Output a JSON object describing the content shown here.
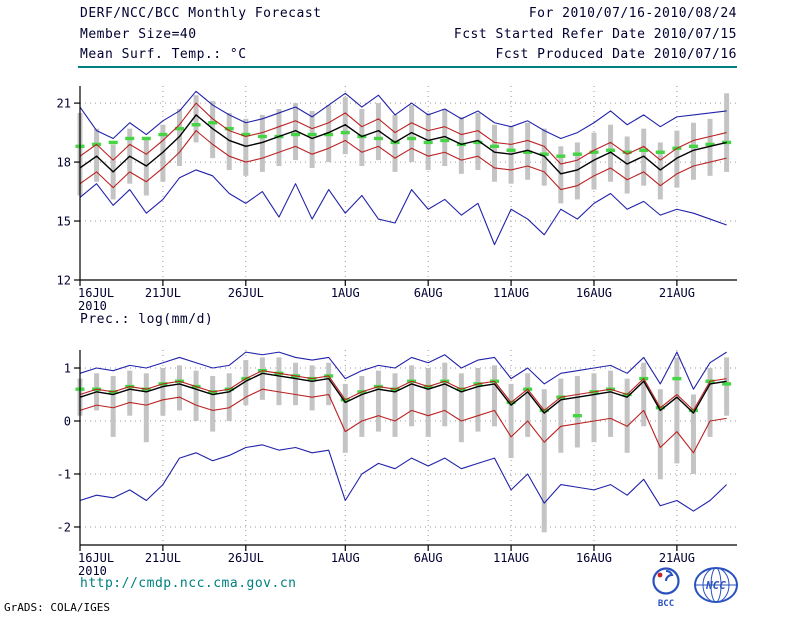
{
  "header": {
    "title": "DERF/NCC/BCC Monthly Forecast",
    "member_size": "Member Size=40",
    "for_range": "For 2010/07/16-2010/08/24",
    "fcst_started": "Fcst Started Refer Date 2010/07/15",
    "fcst_produced": "Fcst Produced Date 2010/07/16"
  },
  "footer": {
    "url": "http://cmdp.ncc.cma.gov.cn",
    "credit": "GrADS: COLA/IGES",
    "logos": [
      {
        "name": "bcc-logo",
        "label": "BCC"
      },
      {
        "name": "ncc-logo",
        "label": "NCC"
      }
    ]
  },
  "colors": {
    "accent_teal": "#008080",
    "line_blue": "#2222aa",
    "line_red": "#bb2222",
    "line_black": "#000000",
    "dash_green": "#44d444",
    "bar_gray": "#c4c4c4"
  },
  "chart_data": [
    {
      "type": "line",
      "title": "Mean Surf. Temp.: °C",
      "n_points": 40,
      "x_axis": {
        "year": "2010",
        "labels": [
          {
            "day": 0,
            "text": "16JUL"
          },
          {
            "day": 5,
            "text": "21JUL"
          },
          {
            "day": 10,
            "text": "26JUL"
          },
          {
            "day": 16,
            "text": "1AUG"
          },
          {
            "day": 21,
            "text": "6AUG"
          },
          {
            "day": 26,
            "text": "11AUG"
          },
          {
            "day": 31,
            "text": "16AUG"
          },
          {
            "day": 36,
            "text": "21AUG"
          }
        ]
      },
      "yticks": [
        12,
        15,
        18,
        21
      ],
      "ylim": [
        12,
        21.87
      ],
      "bars": {
        "name": "ensemble-spread",
        "color": "#c4c4c4",
        "low": [
          16.3,
          17.0,
          16.1,
          16.9,
          16.3,
          17.0,
          17.8,
          19.0,
          18.2,
          17.6,
          17.3,
          17.5,
          17.8,
          18.1,
          17.7,
          18.0,
          18.4,
          17.8,
          18.1,
          17.5,
          18.0,
          17.6,
          17.8,
          17.4,
          17.6,
          17.0,
          16.9,
          17.1,
          16.8,
          15.9,
          16.1,
          16.6,
          17.0,
          16.4,
          16.8,
          16.1,
          16.7,
          17.1,
          17.3,
          17.5
        ],
        "high": [
          20.5,
          19.7,
          18.9,
          19.7,
          19.2,
          19.9,
          20.7,
          21.4,
          21.1,
          20.5,
          20.2,
          20.4,
          20.7,
          21.0,
          20.6,
          20.9,
          21.3,
          20.7,
          21.0,
          20.4,
          20.9,
          20.5,
          20.7,
          20.3,
          20.5,
          19.9,
          19.8,
          20.0,
          19.7,
          18.8,
          19.0,
          19.5,
          19.9,
          19.3,
          19.7,
          19.0,
          19.6,
          20.0,
          20.2,
          21.5
        ]
      },
      "dashes": {
        "name": "observation-dashes",
        "color": "#44d444",
        "values": [
          18.8,
          18.9,
          19.0,
          19.2,
          19.2,
          19.4,
          19.7,
          19.9,
          20.0,
          19.7,
          19.4,
          19.3,
          19.3,
          19.4,
          19.4,
          19.4,
          19.5,
          19.3,
          19.2,
          19.0,
          19.2,
          19.0,
          19.1,
          18.9,
          19.0,
          18.8,
          18.6,
          18.5,
          18.4,
          18.3,
          18.4,
          18.5,
          18.6,
          18.5,
          18.6,
          18.5,
          18.7,
          18.8,
          18.9,
          19.0
        ]
      },
      "series": [
        {
          "name": "ensemble-max",
          "color": "#2222aa",
          "width": 1.1,
          "values": [
            20.8,
            19.6,
            19.2,
            20.0,
            19.4,
            20.1,
            20.6,
            21.6,
            20.9,
            20.4,
            20.0,
            20.2,
            20.5,
            20.8,
            20.3,
            20.9,
            21.5,
            20.8,
            21.4,
            20.4,
            21.0,
            20.4,
            20.7,
            20.2,
            20.6,
            20.0,
            19.8,
            20.1,
            19.6,
            19.2,
            19.5,
            20.0,
            20.6,
            19.9,
            20.4,
            19.8,
            20.3,
            20.4,
            20.5,
            20.6
          ]
        },
        {
          "name": "upper-quartile",
          "color": "#bb2222",
          "width": 1.1,
          "values": [
            18.3,
            18.9,
            18.1,
            18.9,
            18.4,
            19.1,
            19.9,
            21.0,
            20.2,
            19.6,
            19.3,
            19.5,
            19.8,
            20.1,
            19.7,
            20.0,
            20.5,
            19.8,
            20.2,
            19.5,
            20.0,
            19.6,
            19.8,
            19.4,
            19.6,
            19.0,
            18.9,
            19.1,
            18.8,
            17.9,
            18.1,
            18.6,
            19.0,
            18.4,
            18.8,
            18.1,
            18.7,
            19.1,
            19.3,
            19.5
          ]
        },
        {
          "name": "ensemble-mean",
          "color": "#000000",
          "width": 1.4,
          "values": [
            17.7,
            18.3,
            17.5,
            18.3,
            17.8,
            18.5,
            19.3,
            20.4,
            19.7,
            19.1,
            18.8,
            19.0,
            19.3,
            19.6,
            19.2,
            19.5,
            19.9,
            19.3,
            19.6,
            19.0,
            19.5,
            19.1,
            19.3,
            18.9,
            19.1,
            18.5,
            18.4,
            18.6,
            18.3,
            17.4,
            17.6,
            18.1,
            18.5,
            17.9,
            18.3,
            17.6,
            18.2,
            18.6,
            18.8,
            19.0
          ]
        },
        {
          "name": "lower-quartile",
          "color": "#bb2222",
          "width": 1.1,
          "values": [
            16.9,
            17.5,
            16.7,
            17.5,
            17.0,
            17.7,
            18.5,
            19.6,
            18.9,
            18.3,
            18.0,
            18.2,
            18.5,
            18.8,
            18.4,
            18.7,
            19.1,
            18.5,
            18.8,
            18.2,
            18.7,
            18.3,
            18.5,
            18.1,
            18.3,
            17.7,
            17.6,
            17.8,
            17.5,
            16.6,
            16.8,
            17.3,
            17.7,
            17.1,
            17.5,
            16.8,
            17.4,
            17.8,
            18.0,
            18.2
          ]
        },
        {
          "name": "ensemble-min",
          "color": "#2222aa",
          "width": 1.1,
          "values": [
            16.2,
            16.9,
            15.8,
            16.6,
            15.4,
            16.1,
            17.2,
            17.6,
            17.3,
            16.4,
            15.9,
            16.5,
            15.2,
            16.9,
            15.1,
            16.6,
            15.4,
            16.3,
            15.1,
            14.9,
            16.6,
            15.6,
            16.1,
            15.3,
            15.9,
            13.8,
            15.6,
            15.1,
            14.3,
            15.6,
            15.1,
            15.9,
            16.4,
            15.6,
            16.0,
            15.3,
            15.6,
            15.4,
            15.1,
            14.8
          ]
        }
      ]
    },
    {
      "type": "line",
      "title": "Prec.: log(mm/d)",
      "n_points": 40,
      "x_axis": {
        "year": "2010",
        "labels": [
          {
            "day": 0,
            "text": "16JUL"
          },
          {
            "day": 5,
            "text": "21JUL"
          },
          {
            "day": 10,
            "text": "26JUL"
          },
          {
            "day": 16,
            "text": "1AUG"
          },
          {
            "day": 21,
            "text": "6AUG"
          },
          {
            "day": 26,
            "text": "11AUG"
          },
          {
            "day": 31,
            "text": "16AUG"
          },
          {
            "day": 36,
            "text": "21AUG"
          }
        ]
      },
      "yticks": [
        -2,
        -1,
        0,
        1
      ],
      "ylim": [
        -2.34,
        1.34
      ],
      "bars": {
        "name": "ensemble-spread",
        "color": "#c4c4c4",
        "low": [
          0.1,
          0.2,
          -0.3,
          0.1,
          -0.4,
          0.1,
          0.2,
          0.0,
          -0.2,
          0.0,
          0.3,
          0.4,
          0.3,
          0.3,
          0.2,
          0.3,
          -0.6,
          -0.3,
          -0.2,
          -0.3,
          -0.1,
          -0.3,
          -0.1,
          -0.4,
          -0.2,
          -0.1,
          -0.7,
          -0.3,
          -2.1,
          -0.6,
          -0.5,
          -0.4,
          -0.3,
          -0.6,
          -0.1,
          -1.1,
          -0.8,
          -1.0,
          -0.3,
          0.1
        ],
        "high": [
          0.8,
          0.9,
          0.85,
          0.95,
          0.9,
          1.0,
          1.05,
          0.95,
          0.85,
          0.9,
          1.15,
          1.2,
          1.2,
          1.1,
          1.05,
          1.1,
          0.7,
          0.85,
          0.95,
          0.9,
          1.05,
          1.0,
          1.1,
          0.9,
          1.0,
          1.05,
          0.7,
          0.9,
          0.6,
          0.8,
          0.85,
          0.9,
          0.95,
          0.8,
          1.1,
          0.6,
          1.2,
          0.5,
          1.0,
          1.2
        ]
      },
      "dashes": {
        "name": "observation-dashes",
        "color": "#44d444",
        "values": [
          0.6,
          0.6,
          0.55,
          0.65,
          0.6,
          0.7,
          0.75,
          0.65,
          0.55,
          0.6,
          0.8,
          0.95,
          0.9,
          0.85,
          0.8,
          0.85,
          0.4,
          0.55,
          0.65,
          0.6,
          0.75,
          0.65,
          0.75,
          0.6,
          0.7,
          0.75,
          0.35,
          0.6,
          0.2,
          0.45,
          0.1,
          0.55,
          0.6,
          0.5,
          0.8,
          0.25,
          0.8,
          0.2,
          0.75,
          0.7
        ]
      },
      "series": [
        {
          "name": "ensemble-max",
          "color": "#2222aa",
          "width": 1.1,
          "values": [
            0.9,
            1.0,
            0.95,
            1.05,
            1.0,
            1.1,
            1.2,
            1.1,
            1.0,
            1.05,
            1.3,
            1.25,
            1.3,
            1.2,
            1.15,
            1.2,
            0.8,
            0.95,
            1.05,
            1.0,
            1.2,
            1.1,
            1.25,
            1.0,
            1.15,
            1.2,
            0.8,
            1.0,
            0.7,
            0.9,
            0.95,
            1.0,
            1.05,
            0.9,
            1.2,
            0.7,
            1.3,
            0.6,
            1.1,
            1.3
          ]
        },
        {
          "name": "upper-quartile",
          "color": "#bb2222",
          "width": 1.1,
          "values": [
            0.5,
            0.6,
            0.55,
            0.65,
            0.6,
            0.7,
            0.75,
            0.65,
            0.55,
            0.6,
            0.8,
            0.95,
            0.9,
            0.85,
            0.8,
            0.85,
            0.4,
            0.55,
            0.65,
            0.6,
            0.75,
            0.65,
            0.75,
            0.6,
            0.7,
            0.75,
            0.35,
            0.6,
            0.2,
            0.45,
            0.5,
            0.55,
            0.6,
            0.5,
            0.8,
            0.25,
            0.5,
            0.2,
            0.75,
            0.8
          ]
        },
        {
          "name": "ensemble-mean",
          "color": "#000000",
          "width": 1.4,
          "values": [
            0.45,
            0.55,
            0.5,
            0.6,
            0.55,
            0.65,
            0.7,
            0.6,
            0.5,
            0.55,
            0.75,
            0.9,
            0.85,
            0.8,
            0.75,
            0.8,
            0.35,
            0.5,
            0.6,
            0.55,
            0.7,
            0.6,
            0.7,
            0.55,
            0.65,
            0.7,
            0.3,
            0.55,
            0.15,
            0.4,
            0.45,
            0.5,
            0.55,
            0.45,
            0.75,
            0.2,
            0.45,
            0.15,
            0.7,
            0.75
          ]
        },
        {
          "name": "lower-quartile",
          "color": "#bb2222",
          "width": 1.1,
          "values": [
            0.2,
            0.3,
            0.25,
            0.35,
            0.3,
            0.4,
            0.45,
            0.3,
            0.2,
            0.25,
            0.45,
            0.6,
            0.55,
            0.5,
            0.45,
            0.5,
            -0.2,
            0.0,
            0.1,
            0.0,
            0.2,
            0.1,
            0.2,
            0.0,
            0.1,
            0.2,
            -0.3,
            0.0,
            -0.4,
            -0.1,
            -0.05,
            0.0,
            0.05,
            -0.1,
            0.2,
            -0.5,
            -0.2,
            -0.6,
            0.0,
            0.05
          ]
        },
        {
          "name": "ensemble-min",
          "color": "#2222aa",
          "width": 1.1,
          "values": [
            -1.5,
            -1.4,
            -1.45,
            -1.3,
            -1.5,
            -1.2,
            -0.7,
            -0.6,
            -0.75,
            -0.65,
            -0.5,
            -0.45,
            -0.55,
            -0.5,
            -0.6,
            -0.55,
            -1.5,
            -1.0,
            -0.8,
            -0.9,
            -0.7,
            -0.85,
            -0.7,
            -0.9,
            -0.8,
            -0.7,
            -1.3,
            -1.0,
            -1.55,
            -1.2,
            -1.25,
            -1.3,
            -1.2,
            -1.4,
            -1.1,
            -1.6,
            -1.5,
            -1.7,
            -1.5,
            -1.2
          ]
        }
      ]
    }
  ]
}
